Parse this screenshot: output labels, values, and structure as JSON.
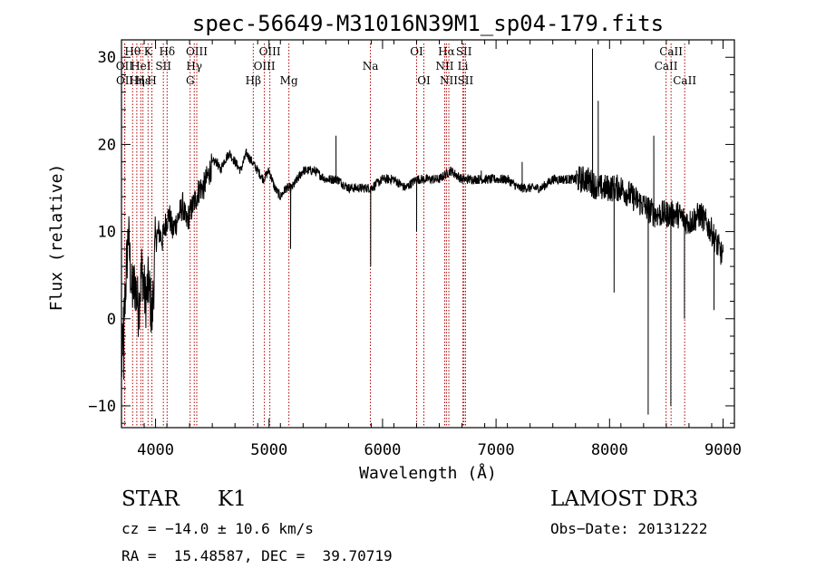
{
  "chart_data": {
    "type": "line",
    "title": "spec-56649-M31016N39M1_sp04-179.fits",
    "xlabel": "Wavelength (Å)",
    "ylabel": "Flux (relative)",
    "xlim": [
      3700,
      9100
    ],
    "ylim": [
      -12.5,
      32
    ],
    "xticks": [
      4000,
      5000,
      6000,
      7000,
      8000,
      9000
    ],
    "yticks": [
      -10,
      0,
      10,
      20,
      30
    ],
    "grid": false,
    "line_color": "#000000",
    "marker_color": "#b00000",
    "series": [
      {
        "x": [
          3700,
          3730,
          3760,
          3790,
          3820,
          3850,
          3880,
          3910,
          3940,
          3970,
          4000,
          4030,
          4060,
          4090,
          4120,
          4150,
          4180,
          4210,
          4240,
          4270,
          4300,
          4330,
          4360,
          4390,
          4420,
          4450,
          4480,
          4510,
          4540,
          4570,
          4600,
          4650,
          4700,
          4750,
          4800,
          4850,
          4900,
          4950,
          5000,
          5050,
          5100,
          5150,
          5200,
          5250,
          5300,
          5400,
          5500,
          5600,
          5700,
          5800,
          5900,
          6000,
          6100,
          6200,
          6300,
          6400,
          6500,
          6600,
          6700,
          6800,
          6900,
          7000,
          7100,
          7200,
          7300,
          7400,
          7500,
          7600,
          7700,
          7800,
          7900,
          8000,
          8100,
          8200,
          8300,
          8400,
          8500,
          8600,
          8700,
          8800,
          8900,
          9000
        ],
        "y": [
          -6,
          2,
          10,
          3,
          4,
          1,
          6,
          2,
          4,
          0,
          9,
          10,
          9,
          11,
          12,
          10,
          11,
          12,
          13,
          11,
          12,
          13,
          14,
          15,
          15,
          16,
          17,
          18,
          18,
          17,
          18,
          19,
          18,
          17,
          19,
          18,
          17,
          16,
          17,
          15,
          14,
          15,
          15,
          16,
          17,
          17,
          16,
          16,
          15,
          15,
          15,
          16,
          16,
          15,
          16,
          16,
          16,
          17,
          16,
          16,
          16,
          16,
          16,
          15,
          15,
          15,
          16,
          16,
          16,
          16,
          15,
          15,
          15,
          14,
          13,
          12,
          12,
          12,
          11,
          12,
          10,
          7
        ]
      }
    ],
    "spikes": [
      {
        "x": 3720,
        "y": -7
      },
      {
        "x": 3760,
        "y": 10
      },
      {
        "x": 5190,
        "y": 8
      },
      {
        "x": 5590,
        "y": 21
      },
      {
        "x": 5895,
        "y": 6
      },
      {
        "x": 6300,
        "y": 10
      },
      {
        "x": 6870,
        "y": 17
      },
      {
        "x": 7230,
        "y": 18
      },
      {
        "x": 7850,
        "y": 31
      },
      {
        "x": 7900,
        "y": 25
      },
      {
        "x": 7960,
        "y": 14
      },
      {
        "x": 8040,
        "y": 3
      },
      {
        "x": 8340,
        "y": -11
      },
      {
        "x": 8390,
        "y": 21
      },
      {
        "x": 8540,
        "y": -10
      },
      {
        "x": 8660,
        "y": 0
      },
      {
        "x": 8920,
        "y": 1
      }
    ],
    "lines": [
      {
        "label": "Hθ",
        "x": 3798,
        "row": 0
      },
      {
        "label": "OII",
        "x": 3727,
        "row": 1
      },
      {
        "label": "OII",
        "x": 3729,
        "row": 2
      },
      {
        "label": "Hε",
        "x": 3889,
        "row": 2
      },
      {
        "label": "HeI",
        "x": 3870,
        "row": 1
      },
      {
        "label": "Hη",
        "x": 3835,
        "row": 2
      },
      {
        "label": "K",
        "x": 3934,
        "row": 0
      },
      {
        "label": "H",
        "x": 3968,
        "row": 2
      },
      {
        "label": "SII",
        "x": 4069,
        "row": 1
      },
      {
        "label": "Hδ",
        "x": 4102,
        "row": 0
      },
      {
        "label": "OIII",
        "x": 4363,
        "row": 0
      },
      {
        "label": "Hγ",
        "x": 4341,
        "row": 1
      },
      {
        "label": "G",
        "x": 4305,
        "row": 2
      },
      {
        "label": "Hβ",
        "x": 4861,
        "row": 2
      },
      {
        "label": "OIII",
        "x": 5007,
        "row": 0
      },
      {
        "label": "OIII",
        "x": 4959,
        "row": 1
      },
      {
        "label": "Mg",
        "x": 5175,
        "row": 2
      },
      {
        "label": "Na",
        "x": 5893,
        "row": 1
      },
      {
        "label": "OI",
        "x": 6300,
        "row": 0
      },
      {
        "label": "OI",
        "x": 6364,
        "row": 2
      },
      {
        "label": "Hα",
        "x": 6563,
        "row": 0
      },
      {
        "label": "NII",
        "x": 6548,
        "row": 1
      },
      {
        "label": "NII",
        "x": 6584,
        "row": 2
      },
      {
        "label": "SII",
        "x": 6717,
        "row": 0
      },
      {
        "label": "Li",
        "x": 6708,
        "row": 1
      },
      {
        "label": "SII",
        "x": 6731,
        "row": 2
      },
      {
        "label": "CaII",
        "x": 8542,
        "row": 0
      },
      {
        "label": "CaII",
        "x": 8498,
        "row": 1
      },
      {
        "label": "CaII",
        "x": 8662,
        "row": 2
      }
    ]
  },
  "info": {
    "class_label": "STAR",
    "subclass": "K1",
    "survey": "LAMOST DR3",
    "cz": "cz = −14.0 ± 10.6 km/s",
    "obs_date": "Obs−Date: 20131222",
    "radec": "RA =  15.48587, DEC =  39.70719"
  }
}
